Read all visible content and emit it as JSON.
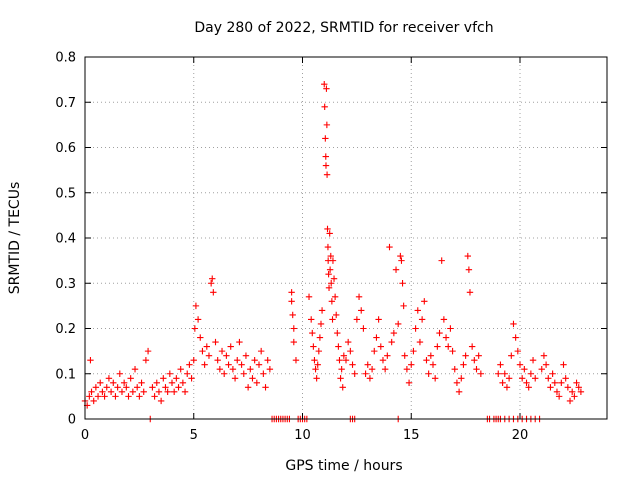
{
  "chart_data": {
    "type": "scatter",
    "title": "Day 280 of 2022, SRMTID for receiver vfch",
    "xlabel": "GPS time / hours",
    "ylabel": "SRMTID / TECUs",
    "xlim": [
      0,
      24
    ],
    "ylim": [
      0,
      0.8
    ],
    "xticks": [
      0,
      5,
      10,
      15,
      20
    ],
    "yticks": [
      0,
      0.1,
      0.2,
      0.3,
      0.4,
      0.5,
      0.6,
      0.7,
      0.8
    ],
    "xtick_labels": [
      "0",
      "5",
      "10",
      "15",
      "20"
    ],
    "ytick_labels": [
      "0",
      "0.1",
      "0.2",
      "0.3",
      "0.4",
      "0.5",
      "0.6",
      "0.7",
      "0.8"
    ],
    "grid": true,
    "marker": "+",
    "color": "#ff0000",
    "series": [
      {
        "name": "SRMTID",
        "points": [
          [
            0.0,
            0.04
          ],
          [
            0.1,
            0.03
          ],
          [
            0.2,
            0.05
          ],
          [
            0.25,
            0.13
          ],
          [
            0.3,
            0.06
          ],
          [
            0.4,
            0.04
          ],
          [
            0.5,
            0.07
          ],
          [
            0.6,
            0.05
          ],
          [
            0.7,
            0.08
          ],
          [
            0.8,
            0.06
          ],
          [
            0.9,
            0.05
          ],
          [
            1.0,
            0.07
          ],
          [
            1.1,
            0.09
          ],
          [
            1.2,
            0.06
          ],
          [
            1.3,
            0.08
          ],
          [
            1.4,
            0.05
          ],
          [
            1.5,
            0.07
          ],
          [
            1.6,
            0.1
          ],
          [
            1.7,
            0.06
          ],
          [
            1.8,
            0.08
          ],
          [
            1.9,
            0.07
          ],
          [
            2.0,
            0.05
          ],
          [
            2.1,
            0.09
          ],
          [
            2.2,
            0.06
          ],
          [
            2.3,
            0.11
          ],
          [
            2.4,
            0.07
          ],
          [
            2.5,
            0.05
          ],
          [
            2.6,
            0.08
          ],
          [
            2.7,
            0.06
          ],
          [
            2.8,
            0.13
          ],
          [
            2.9,
            0.15
          ],
          [
            3.0,
            0.0
          ],
          [
            3.1,
            0.07
          ],
          [
            3.2,
            0.05
          ],
          [
            3.3,
            0.08
          ],
          [
            3.4,
            0.06
          ],
          [
            3.5,
            0.04
          ],
          [
            3.6,
            0.09
          ],
          [
            3.7,
            0.07
          ],
          [
            3.8,
            0.06
          ],
          [
            3.9,
            0.1
          ],
          [
            4.0,
            0.08
          ],
          [
            4.1,
            0.06
          ],
          [
            4.2,
            0.09
          ],
          [
            4.3,
            0.07
          ],
          [
            4.4,
            0.11
          ],
          [
            4.5,
            0.08
          ],
          [
            4.6,
            0.06
          ],
          [
            4.7,
            0.1
          ],
          [
            4.8,
            0.12
          ],
          [
            4.9,
            0.09
          ],
          [
            5.0,
            0.13
          ],
          [
            5.05,
            0.2
          ],
          [
            5.1,
            0.25
          ],
          [
            5.2,
            0.22
          ],
          [
            5.3,
            0.18
          ],
          [
            5.4,
            0.15
          ],
          [
            5.5,
            0.12
          ],
          [
            5.6,
            0.16
          ],
          [
            5.7,
            0.14
          ],
          [
            5.8,
            0.3
          ],
          [
            5.85,
            0.31
          ],
          [
            5.9,
            0.28
          ],
          [
            6.0,
            0.17
          ],
          [
            6.1,
            0.13
          ],
          [
            6.2,
            0.11
          ],
          [
            6.3,
            0.15
          ],
          [
            6.4,
            0.1
          ],
          [
            6.5,
            0.14
          ],
          [
            6.6,
            0.12
          ],
          [
            6.7,
            0.16
          ],
          [
            6.8,
            0.11
          ],
          [
            6.9,
            0.09
          ],
          [
            7.0,
            0.13
          ],
          [
            7.1,
            0.17
          ],
          [
            7.2,
            0.12
          ],
          [
            7.3,
            0.1
          ],
          [
            7.4,
            0.14
          ],
          [
            7.5,
            0.07
          ],
          [
            7.6,
            0.11
          ],
          [
            7.7,
            0.09
          ],
          [
            7.8,
            0.13
          ],
          [
            7.9,
            0.08
          ],
          [
            8.0,
            0.12
          ],
          [
            8.1,
            0.15
          ],
          [
            8.2,
            0.1
          ],
          [
            8.3,
            0.07
          ],
          [
            8.4,
            0.13
          ],
          [
            8.5,
            0.11
          ],
          [
            9.5,
            0.28
          ],
          [
            9.5,
            0.26
          ],
          [
            9.55,
            0.23
          ],
          [
            9.6,
            0.2
          ],
          [
            9.6,
            0.17
          ],
          [
            9.7,
            0.13
          ],
          [
            10.3,
            0.27
          ],
          [
            10.4,
            0.22
          ],
          [
            10.45,
            0.19
          ],
          [
            10.5,
            0.16
          ],
          [
            10.55,
            0.13
          ],
          [
            10.6,
            0.11
          ],
          [
            10.65,
            0.09
          ],
          [
            10.7,
            0.12
          ],
          [
            10.75,
            0.15
          ],
          [
            10.8,
            0.18
          ],
          [
            10.85,
            0.21
          ],
          [
            10.9,
            0.24
          ],
          [
            11.0,
            0.74
          ],
          [
            11.02,
            0.69
          ],
          [
            11.05,
            0.62
          ],
          [
            11.07,
            0.58
          ],
          [
            11.08,
            0.56
          ],
          [
            11.1,
            0.73
          ],
          [
            11.12,
            0.65
          ],
          [
            11.13,
            0.54
          ],
          [
            11.15,
            0.42
          ],
          [
            11.17,
            0.38
          ],
          [
            11.18,
            0.35
          ],
          [
            11.2,
            0.32
          ],
          [
            11.22,
            0.29
          ],
          [
            11.25,
            0.41
          ],
          [
            11.27,
            0.33
          ],
          [
            11.3,
            0.36
          ],
          [
            11.32,
            0.3
          ],
          [
            11.35,
            0.26
          ],
          [
            11.38,
            0.22
          ],
          [
            11.4,
            0.35
          ],
          [
            11.45,
            0.31
          ],
          [
            11.5,
            0.27
          ],
          [
            11.55,
            0.23
          ],
          [
            11.6,
            0.19
          ],
          [
            11.65,
            0.16
          ],
          [
            11.7,
            0.13
          ],
          [
            11.75,
            0.09
          ],
          [
            11.8,
            0.11
          ],
          [
            11.85,
            0.07
          ],
          [
            11.9,
            0.14
          ],
          [
            12.0,
            0.13
          ],
          [
            12.1,
            0.17
          ],
          [
            12.2,
            0.15
          ],
          [
            12.3,
            0.12
          ],
          [
            12.4,
            0.1
          ],
          [
            12.5,
            0.22
          ],
          [
            12.6,
            0.27
          ],
          [
            12.7,
            0.24
          ],
          [
            12.8,
            0.2
          ],
          [
            12.9,
            0.1
          ],
          [
            13.0,
            0.12
          ],
          [
            13.1,
            0.09
          ],
          [
            13.2,
            0.11
          ],
          [
            13.3,
            0.15
          ],
          [
            13.4,
            0.18
          ],
          [
            13.5,
            0.22
          ],
          [
            13.6,
            0.16
          ],
          [
            13.7,
            0.13
          ],
          [
            13.8,
            0.11
          ],
          [
            13.9,
            0.14
          ],
          [
            14.0,
            0.38
          ],
          [
            14.1,
            0.17
          ],
          [
            14.2,
            0.19
          ],
          [
            14.3,
            0.33
          ],
          [
            14.4,
            0.21
          ],
          [
            14.5,
            0.36
          ],
          [
            14.55,
            0.35
          ],
          [
            14.6,
            0.3
          ],
          [
            14.65,
            0.25
          ],
          [
            14.7,
            0.14
          ],
          [
            14.8,
            0.11
          ],
          [
            14.9,
            0.08
          ],
          [
            15.0,
            0.12
          ],
          [
            15.1,
            0.15
          ],
          [
            15.2,
            0.2
          ],
          [
            15.3,
            0.24
          ],
          [
            15.4,
            0.17
          ],
          [
            15.5,
            0.22
          ],
          [
            15.6,
            0.26
          ],
          [
            15.7,
            0.13
          ],
          [
            15.8,
            0.1
          ],
          [
            15.9,
            0.14
          ],
          [
            16.0,
            0.12
          ],
          [
            16.1,
            0.09
          ],
          [
            16.2,
            0.16
          ],
          [
            16.3,
            0.19
          ],
          [
            16.4,
            0.35
          ],
          [
            16.5,
            0.22
          ],
          [
            16.6,
            0.18
          ],
          [
            16.7,
            0.16
          ],
          [
            16.8,
            0.2
          ],
          [
            16.9,
            0.15
          ],
          [
            17.0,
            0.11
          ],
          [
            17.1,
            0.08
          ],
          [
            17.2,
            0.06
          ],
          [
            17.3,
            0.09
          ],
          [
            17.4,
            0.12
          ],
          [
            17.5,
            0.14
          ],
          [
            17.6,
            0.36
          ],
          [
            17.65,
            0.33
          ],
          [
            17.7,
            0.28
          ],
          [
            17.8,
            0.16
          ],
          [
            17.9,
            0.13
          ],
          [
            18.0,
            0.11
          ],
          [
            18.1,
            0.14
          ],
          [
            18.2,
            0.1
          ],
          [
            19.0,
            0.1
          ],
          [
            19.1,
            0.12
          ],
          [
            19.2,
            0.08
          ],
          [
            19.3,
            0.1
          ],
          [
            19.4,
            0.07
          ],
          [
            19.5,
            0.09
          ],
          [
            19.6,
            0.14
          ],
          [
            19.7,
            0.21
          ],
          [
            19.8,
            0.18
          ],
          [
            19.9,
            0.15
          ],
          [
            20.0,
            0.12
          ],
          [
            20.1,
            0.09
          ],
          [
            20.2,
            0.11
          ],
          [
            20.3,
            0.08
          ],
          [
            20.4,
            0.07
          ],
          [
            20.5,
            0.1
          ],
          [
            20.6,
            0.13
          ],
          [
            20.7,
            0.09
          ],
          [
            21.0,
            0.11
          ],
          [
            21.1,
            0.14
          ],
          [
            21.2,
            0.12
          ],
          [
            21.3,
            0.09
          ],
          [
            21.4,
            0.07
          ],
          [
            21.5,
            0.1
          ],
          [
            21.6,
            0.08
          ],
          [
            21.7,
            0.06
          ],
          [
            21.8,
            0.05
          ],
          [
            21.9,
            0.08
          ],
          [
            22.0,
            0.12
          ],
          [
            22.1,
            0.09
          ],
          [
            22.2,
            0.07
          ],
          [
            22.3,
            0.04
          ],
          [
            22.4,
            0.06
          ],
          [
            22.5,
            0.05
          ],
          [
            22.6,
            0.08
          ],
          [
            22.7,
            0.07
          ],
          [
            22.8,
            0.06
          ],
          [
            8.6,
            0
          ],
          [
            8.7,
            0
          ],
          [
            8.8,
            0
          ],
          [
            8.9,
            0
          ],
          [
            9.0,
            0
          ],
          [
            9.1,
            0
          ],
          [
            9.2,
            0
          ],
          [
            9.3,
            0
          ],
          [
            9.4,
            0
          ],
          [
            9.8,
            0
          ],
          [
            9.9,
            0
          ],
          [
            10.0,
            0
          ],
          [
            10.1,
            0
          ],
          [
            10.2,
            0
          ],
          [
            12.2,
            0
          ],
          [
            12.3,
            0
          ],
          [
            12.4,
            0
          ],
          [
            14.4,
            0
          ],
          [
            18.5,
            0
          ],
          [
            18.6,
            0
          ],
          [
            18.8,
            0
          ],
          [
            18.9,
            0
          ],
          [
            19.0,
            0
          ],
          [
            19.1,
            0
          ],
          [
            19.3,
            0
          ],
          [
            19.5,
            0
          ],
          [
            19.7,
            0
          ],
          [
            19.9,
            0
          ],
          [
            20.1,
            0
          ],
          [
            20.3,
            0
          ],
          [
            20.5,
            0
          ],
          [
            20.7,
            0
          ],
          [
            20.9,
            0
          ]
        ]
      }
    ]
  }
}
